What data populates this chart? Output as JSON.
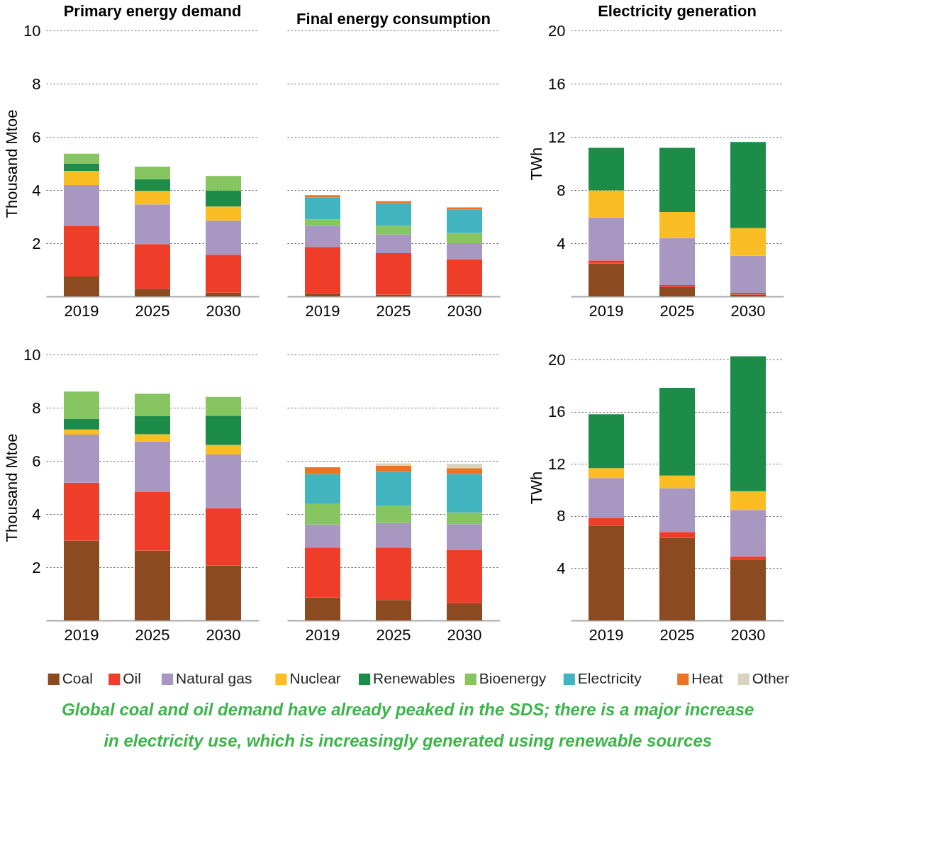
{
  "chart_data": [
    {
      "type": "bar",
      "title": "Primary energy demand",
      "ylabel": "Thousand Mtoe",
      "categories": [
        "2019",
        "2025",
        "2030"
      ],
      "stacked": true,
      "ylim": [
        0,
        10
      ],
      "yticks": [
        2,
        4,
        6,
        8,
        10
      ],
      "grid": "y",
      "legend": "bottom",
      "series": [
        {
          "name": "Coal",
          "color": "#8b4a1f",
          "values": [
            0.75,
            0.29,
            0.14
          ]
        },
        {
          "name": "Oil",
          "color": "#ee3e2a",
          "values": [
            1.89,
            1.68,
            1.43
          ]
        },
        {
          "name": "Natural gas",
          "color": "#a797c1",
          "values": [
            1.55,
            1.49,
            1.28
          ]
        },
        {
          "name": "Nuclear",
          "color": "#fbbd24",
          "values": [
            0.53,
            0.51,
            0.53
          ]
        },
        {
          "name": "Renewables",
          "color": "#1c8c48",
          "values": [
            0.28,
            0.44,
            0.6
          ]
        },
        {
          "name": "Bioenergy",
          "color": "#86c55f",
          "values": [
            0.37,
            0.47,
            0.55
          ]
        }
      ]
    },
    {
      "type": "bar",
      "title": "Final energy consumption",
      "categories": [
        "2019",
        "2025",
        "2030"
      ],
      "stacked": true,
      "ylim": [
        0,
        10
      ],
      "yticks": [
        2,
        4,
        6,
        8,
        10
      ],
      "grid": "y",
      "legend": "bottom",
      "tick_labels": "x",
      "series": [
        {
          "name": "Coal",
          "color": "#8b4a1f",
          "values": [
            0.12,
            0.07,
            0.07
          ]
        },
        {
          "name": "Oil",
          "color": "#ee3e2a",
          "values": [
            1.74,
            1.56,
            1.33
          ]
        },
        {
          "name": "Natural gas",
          "color": "#a797c1",
          "values": [
            0.79,
            0.7,
            0.6
          ]
        },
        {
          "name": "Bioenergy",
          "color": "#86c55f",
          "values": [
            0.25,
            0.33,
            0.39
          ]
        },
        {
          "name": "Electricity",
          "color": "#41b4c0",
          "values": [
            0.83,
            0.84,
            0.87
          ]
        },
        {
          "name": "Heat",
          "color": "#ea7424",
          "values": [
            0.08,
            0.08,
            0.09
          ]
        }
      ]
    },
    {
      "type": "bar",
      "title": "Electricity generation",
      "ylabel": "TWh",
      "categories": [
        "2019",
        "2025",
        "2030"
      ],
      "stacked": true,
      "ylim": [
        0,
        20
      ],
      "yticks": [
        4,
        8,
        12,
        16,
        20
      ],
      "grid": "y",
      "legend": "bottom",
      "series": [
        {
          "name": "Coal",
          "color": "#8b4a1f",
          "values": [
            2.48,
            0.71,
            0.14
          ]
        },
        {
          "name": "Oil",
          "color": "#ee3e2a",
          "values": [
            0.23,
            0.14,
            0.13
          ]
        },
        {
          "name": "Natural gas",
          "color": "#a797c1",
          "values": [
            3.23,
            3.55,
            2.8
          ]
        },
        {
          "name": "Nuclear",
          "color": "#fbbd24",
          "values": [
            2.04,
            1.95,
            2.07
          ]
        },
        {
          "name": "Renewables",
          "color": "#1c8c48",
          "values": [
            3.19,
            4.82,
            6.47
          ]
        }
      ]
    },
    {
      "type": "bar",
      "ylabel": "Thousand Mtoe",
      "categories": [
        "2019",
        "2025",
        "2030"
      ],
      "stacked": true,
      "ylim": [
        0,
        10
      ],
      "yticks": [
        2,
        4,
        6,
        8,
        10
      ],
      "grid": "y",
      "legend": "bottom",
      "series": [
        {
          "name": "Coal",
          "color": "#8b4a1f",
          "values": [
            3.0,
            2.63,
            2.07
          ]
        },
        {
          "name": "Oil",
          "color": "#ee3e2a",
          "values": [
            2.18,
            2.2,
            2.15
          ]
        },
        {
          "name": "Natural gas",
          "color": "#a797c1",
          "values": [
            1.81,
            1.9,
            2.02
          ]
        },
        {
          "name": "Nuclear",
          "color": "#fbbd24",
          "values": [
            0.19,
            0.27,
            0.36
          ]
        },
        {
          "name": "Renewables",
          "color": "#1c8c48",
          "values": [
            0.41,
            0.68,
            1.1
          ]
        },
        {
          "name": "Bioenergy",
          "color": "#86c55f",
          "values": [
            1.02,
            0.85,
            0.71
          ]
        }
      ]
    },
    {
      "type": "bar",
      "categories": [
        "2019",
        "2025",
        "2030"
      ],
      "stacked": true,
      "ylim": [
        0,
        10
      ],
      "yticks": [
        2,
        4,
        6,
        8,
        10
      ],
      "grid": "y",
      "legend": "bottom",
      "tick_labels": "x",
      "series": [
        {
          "name": "Coal",
          "color": "#8b4a1f",
          "values": [
            0.87,
            0.77,
            0.66
          ]
        },
        {
          "name": "Oil",
          "color": "#ee3e2a",
          "values": [
            1.87,
            1.97,
            1.98
          ]
        },
        {
          "name": "Natural gas",
          "color": "#a797c1",
          "values": [
            0.87,
            0.93,
            0.98
          ]
        },
        {
          "name": "Bioenergy",
          "color": "#86c55f",
          "values": [
            0.79,
            0.64,
            0.44
          ]
        },
        {
          "name": "Electricity",
          "color": "#41b4c0",
          "values": [
            1.1,
            1.27,
            1.45
          ]
        },
        {
          "name": "Heat",
          "color": "#ea7424",
          "values": [
            0.26,
            0.24,
            0.22
          ]
        },
        {
          "name": "Other",
          "color": "#d9d3bb",
          "values": [
            null,
            0.09,
            0.16
          ]
        }
      ]
    },
    {
      "type": "bar",
      "ylabel": "TWh",
      "categories": [
        "2019",
        "2025",
        "2030"
      ],
      "stacked": true,
      "ylim": [
        0,
        20.4
      ],
      "yticks": [
        4,
        8,
        12,
        16,
        20
      ],
      "grid": "y",
      "legend": "bottom",
      "annotations": [
        "Global coal and oil demand have already peaked in the SDS; there is a major increase in electricity use, which is increasingly generated using renewable sources"
      ],
      "series": [
        {
          "name": "Coal",
          "color": "#8b4a1f",
          "values": [
            7.27,
            6.33,
            4.66
          ]
        },
        {
          "name": "Oil",
          "color": "#ee3e2a",
          "values": [
            0.61,
            0.46,
            0.26
          ]
        },
        {
          "name": "Natural gas",
          "color": "#a797c1",
          "values": [
            3.04,
            3.35,
            3.55
          ]
        },
        {
          "name": "Nuclear",
          "color": "#fbbd24",
          "values": [
            0.76,
            0.97,
            1.44
          ]
        },
        {
          "name": "Renewables",
          "color": "#1c8c48",
          "values": [
            4.14,
            6.74,
            10.35
          ]
        }
      ]
    }
  ]
}
